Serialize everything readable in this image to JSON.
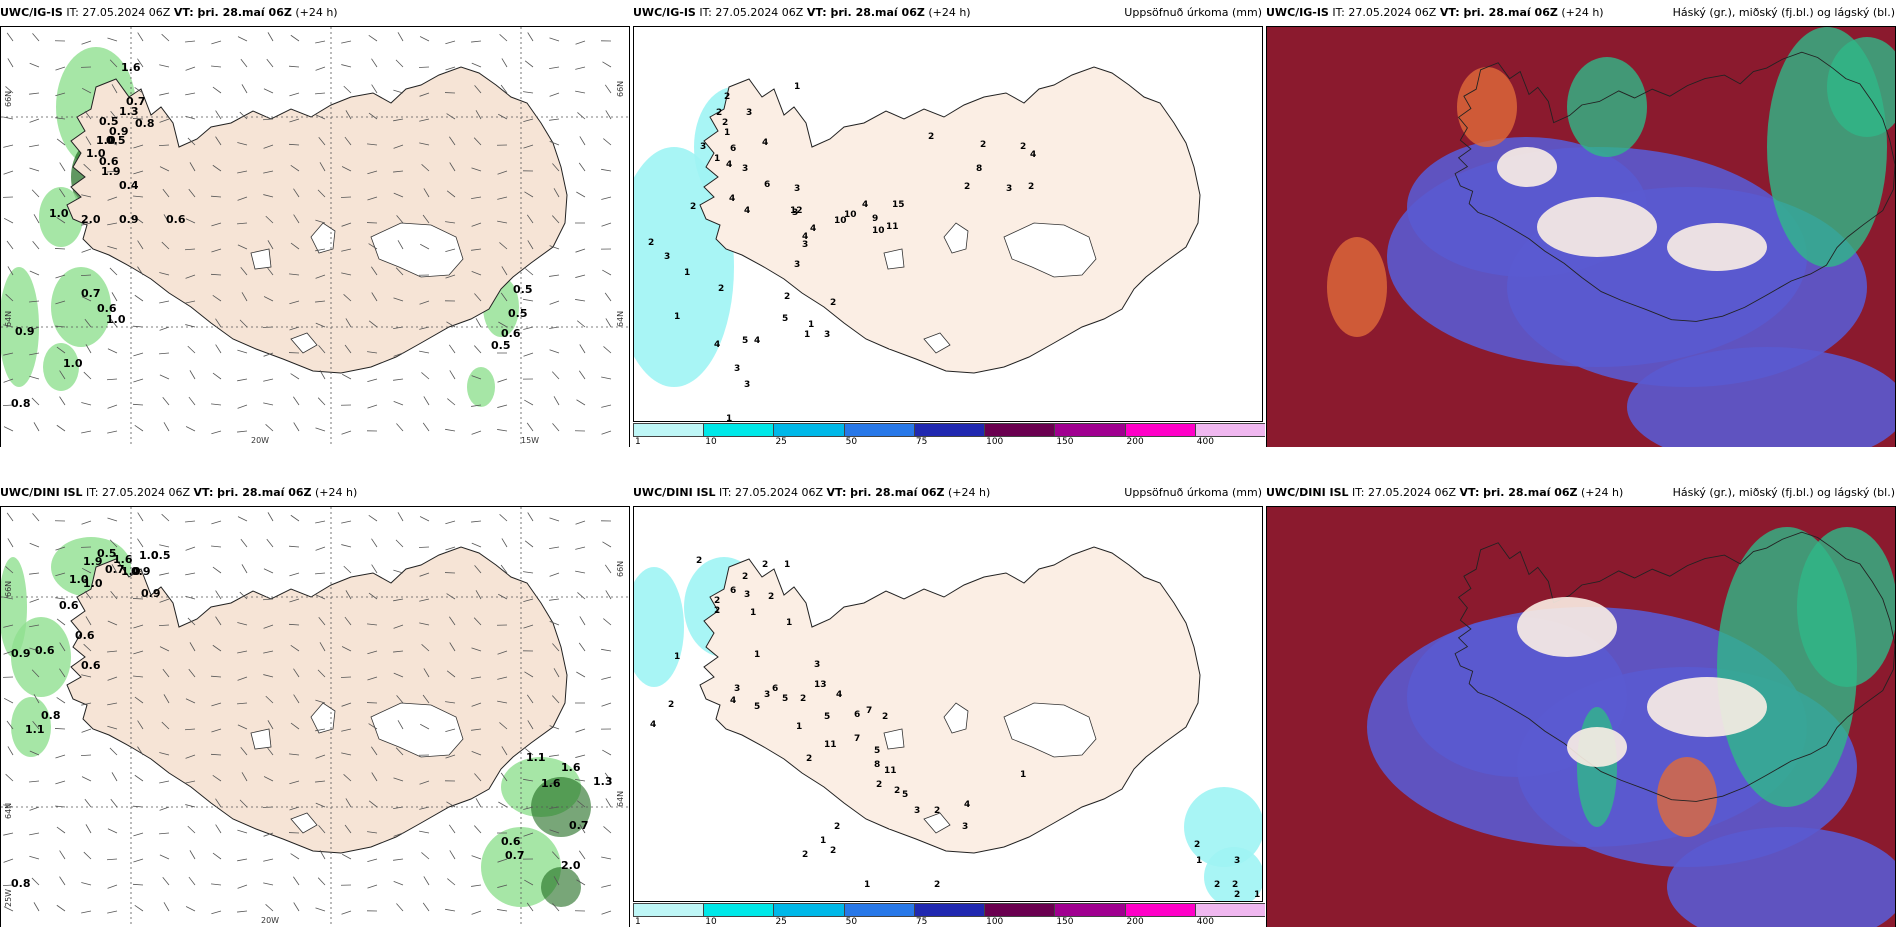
{
  "colors": {
    "land": "#f6e4d6",
    "land_light": "#fbeee4",
    "wind_green": "#90e090",
    "dark_green": "#1e6b1e",
    "cyan": "#9ff4f4",
    "cloud_dark": "#8b1a2e",
    "cloud_blue": "#5a5ad0",
    "cloud_green": "#2fb888",
    "cloud_orange": "#e06a3a"
  },
  "panels": [
    {
      "model": "UWC/IG-IS",
      "it_label": "IT:",
      "it_value": "27.05.2024 06Z",
      "vt_label": "VT: þri. 28.maí 06Z",
      "lead": "(+24 h)",
      "right_title": "",
      "grid_labels": [
        "66N",
        "64N",
        "20W",
        "15W",
        "66N",
        "64N"
      ],
      "values": [
        {
          "t": "1.6"
        },
        {
          "t": "0.7"
        },
        {
          "t": "1.3"
        },
        {
          "t": "0.5"
        },
        {
          "t": "0.8"
        },
        {
          "t": "0.9"
        },
        {
          "t": "1.0"
        },
        {
          "t": "0.5"
        },
        {
          "t": "1.0"
        },
        {
          "t": "0.6"
        },
        {
          "t": "1.9"
        },
        {
          "t": "0.4"
        },
        {
          "t": "1.0"
        },
        {
          "t": "2.0"
        },
        {
          "t": "0.9"
        },
        {
          "t": "0.6"
        },
        {
          "t": "0.7"
        },
        {
          "t": "0.6"
        },
        {
          "t": "1.0"
        },
        {
          "t": "0.9"
        },
        {
          "t": "1.0"
        },
        {
          "t": "0.8"
        },
        {
          "t": "0.5"
        },
        {
          "t": "0.5"
        },
        {
          "t": "0.6"
        },
        {
          "t": "0.5"
        }
      ]
    },
    {
      "model": "UWC/IG-IS",
      "it_label": "IT:",
      "it_value": "27.05.2024 06Z",
      "vt_label": "VT: þri. 28.maí 06Z",
      "lead": "(+24 h)",
      "right_title": "Uppsöfnuð úrkoma (mm)",
      "colorbar_ticks": [
        "1",
        "10",
        "25",
        "50",
        "75",
        "100",
        "150",
        "200",
        "400"
      ],
      "colorbar_colors": [
        "#bff7f7",
        "#00e8e8",
        "#00b8e8",
        "#2878e8",
        "#2028b0",
        "#6a0050",
        "#a00090",
        "#ff00c8",
        "#f0b8f0"
      ],
      "values": [
        {
          "t": "1"
        },
        {
          "t": "2"
        },
        {
          "t": "2"
        },
        {
          "t": "3"
        },
        {
          "t": "2"
        },
        {
          "t": "1"
        },
        {
          "t": "3"
        },
        {
          "t": "6"
        },
        {
          "t": "4"
        },
        {
          "t": "1"
        },
        {
          "t": "4"
        },
        {
          "t": "3"
        },
        {
          "t": "6"
        },
        {
          "t": "3"
        },
        {
          "t": "2"
        },
        {
          "t": "4"
        },
        {
          "t": "4"
        },
        {
          "t": "12"
        },
        {
          "t": "10"
        },
        {
          "t": "4"
        },
        {
          "t": "10"
        },
        {
          "t": "15"
        },
        {
          "t": "9"
        },
        {
          "t": "10"
        },
        {
          "t": "11"
        },
        {
          "t": "2"
        },
        {
          "t": "2"
        },
        {
          "t": "2"
        },
        {
          "t": "4"
        },
        {
          "t": "8"
        },
        {
          "t": "3"
        },
        {
          "t": "2"
        },
        {
          "t": "2"
        },
        {
          "t": "4"
        },
        {
          "t": "4"
        },
        {
          "t": "2"
        },
        {
          "t": "3"
        },
        {
          "t": "1"
        },
        {
          "t": "2"
        },
        {
          "t": "1"
        },
        {
          "t": "4"
        },
        {
          "t": "5"
        },
        {
          "t": "3"
        },
        {
          "t": "3"
        },
        {
          "t": "4"
        },
        {
          "t": "3"
        },
        {
          "t": "3"
        },
        {
          "t": "3"
        },
        {
          "t": "2"
        },
        {
          "t": "5"
        },
        {
          "t": "1"
        },
        {
          "t": "3"
        },
        {
          "t": "1"
        },
        {
          "t": "1"
        },
        {
          "t": "2"
        }
      ]
    },
    {
      "model": "UWC/IG-IS",
      "it_label": "IT:",
      "it_value": "27.05.2024 06Z",
      "vt_label": "VT: þri. 28.maí 06Z",
      "lead": "(+24 h)",
      "right_title": "Háský (gr.), miðský (fj.bl.) og lágský (bl.)"
    },
    {
      "model": "UWC/DINI ISL",
      "it_label": "IT:",
      "it_value": "27.05.2024 06Z",
      "vt_label": "VT: þri. 28.maí 06Z",
      "lead": "(+24 h)",
      "right_title": "",
      "grid_labels": [
        "66N",
        "64N",
        "25W",
        "20W",
        "66N",
        "64N"
      ],
      "values": [
        {
          "t": "0.5"
        },
        {
          "t": "1.6"
        },
        {
          "t": "1.0"
        },
        {
          "t": "0.5"
        },
        {
          "t": "1.9"
        },
        {
          "t": "0.7"
        },
        {
          "t": "1.0"
        },
        {
          "t": "0.9"
        },
        {
          "t": "1.0"
        },
        {
          "t": "1.0"
        },
        {
          "t": "0.9"
        },
        {
          "t": "0.6"
        },
        {
          "t": "0.6"
        },
        {
          "t": "0.9"
        },
        {
          "t": "0.6"
        },
        {
          "t": "0.6"
        },
        {
          "t": "0.8"
        },
        {
          "t": "1.1"
        },
        {
          "t": "1.1"
        },
        {
          "t": "1.6"
        },
        {
          "t": "1.6"
        },
        {
          "t": "1.3"
        },
        {
          "t": "0.7"
        },
        {
          "t": "0.6"
        },
        {
          "t": "0.7"
        },
        {
          "t": "2.0"
        },
        {
          "t": "0.8"
        }
      ]
    },
    {
      "model": "UWC/DINI ISL",
      "it_label": "IT:",
      "it_value": "27.05.2024 06Z",
      "vt_label": "VT: þri. 28.maí 06Z",
      "lead": "(+24 h)",
      "right_title": "Uppsöfnuð úrkoma (mm)",
      "colorbar_ticks": [
        "1",
        "10",
        "25",
        "50",
        "75",
        "100",
        "150",
        "200",
        "400"
      ],
      "values": [
        {
          "t": "2"
        },
        {
          "t": "2"
        },
        {
          "t": "1"
        },
        {
          "t": "2"
        },
        {
          "t": "6"
        },
        {
          "t": "3"
        },
        {
          "t": "2"
        },
        {
          "t": "2"
        },
        {
          "t": "2"
        },
        {
          "t": "1"
        },
        {
          "t": "1"
        },
        {
          "t": "1"
        },
        {
          "t": "1"
        },
        {
          "t": "2"
        },
        {
          "t": "4"
        },
        {
          "t": "3"
        },
        {
          "t": "4"
        },
        {
          "t": "6"
        },
        {
          "t": "3"
        },
        {
          "t": "5"
        },
        {
          "t": "5"
        },
        {
          "t": "2"
        },
        {
          "t": "3"
        },
        {
          "t": "13"
        },
        {
          "t": "5"
        },
        {
          "t": "4"
        },
        {
          "t": "7"
        },
        {
          "t": "2"
        },
        {
          "t": "5"
        },
        {
          "t": "11"
        },
        {
          "t": "1"
        },
        {
          "t": "2"
        },
        {
          "t": "11"
        },
        {
          "t": "6"
        },
        {
          "t": "7"
        },
        {
          "t": "8"
        },
        {
          "t": "2"
        },
        {
          "t": "2"
        },
        {
          "t": "5"
        },
        {
          "t": "3"
        },
        {
          "t": "2"
        },
        {
          "t": "4"
        },
        {
          "t": "3"
        },
        {
          "t": "2"
        },
        {
          "t": "1"
        },
        {
          "t": "2"
        },
        {
          "t": "2"
        },
        {
          "t": "1"
        },
        {
          "t": "2"
        },
        {
          "t": "2"
        },
        {
          "t": "1"
        },
        {
          "t": "3"
        },
        {
          "t": "2"
        },
        {
          "t": "2"
        },
        {
          "t": "2"
        },
        {
          "t": "1"
        },
        {
          "t": "1"
        }
      ]
    },
    {
      "model": "UWC/DINI ISL",
      "it_label": "IT:",
      "it_value": "27.05.2024 06Z",
      "vt_label": "VT: þri. 28.maí 06Z",
      "lead": "(+24 h)",
      "right_title": "Háský (gr.), miðský (fj.bl.) og lágský (bl.)"
    }
  ]
}
